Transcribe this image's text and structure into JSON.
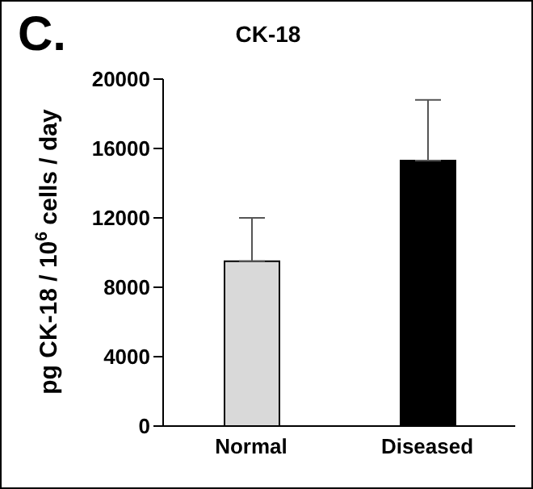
{
  "chart_data": {
    "type": "bar",
    "title": "CK-18",
    "ylabel": "pg CK-18 / 10$^{6}$ cells / day",
    "annotations": [
      "C."
    ],
    "categories": [
      "Normal",
      "Diseased"
    ],
    "values": [
      9500,
      15300
    ],
    "colors": [
      "#d9d9d9",
      "#000000"
    ],
    "errors": [
      [
        9500,
        12000
      ],
      [
        15300,
        18800
      ]
    ],
    "ylim": [
      0,
      20000
    ],
    "yticks": [
      0,
      4000,
      8000,
      12000,
      16000,
      20000
    ],
    "grid": false,
    "legend": false
  }
}
